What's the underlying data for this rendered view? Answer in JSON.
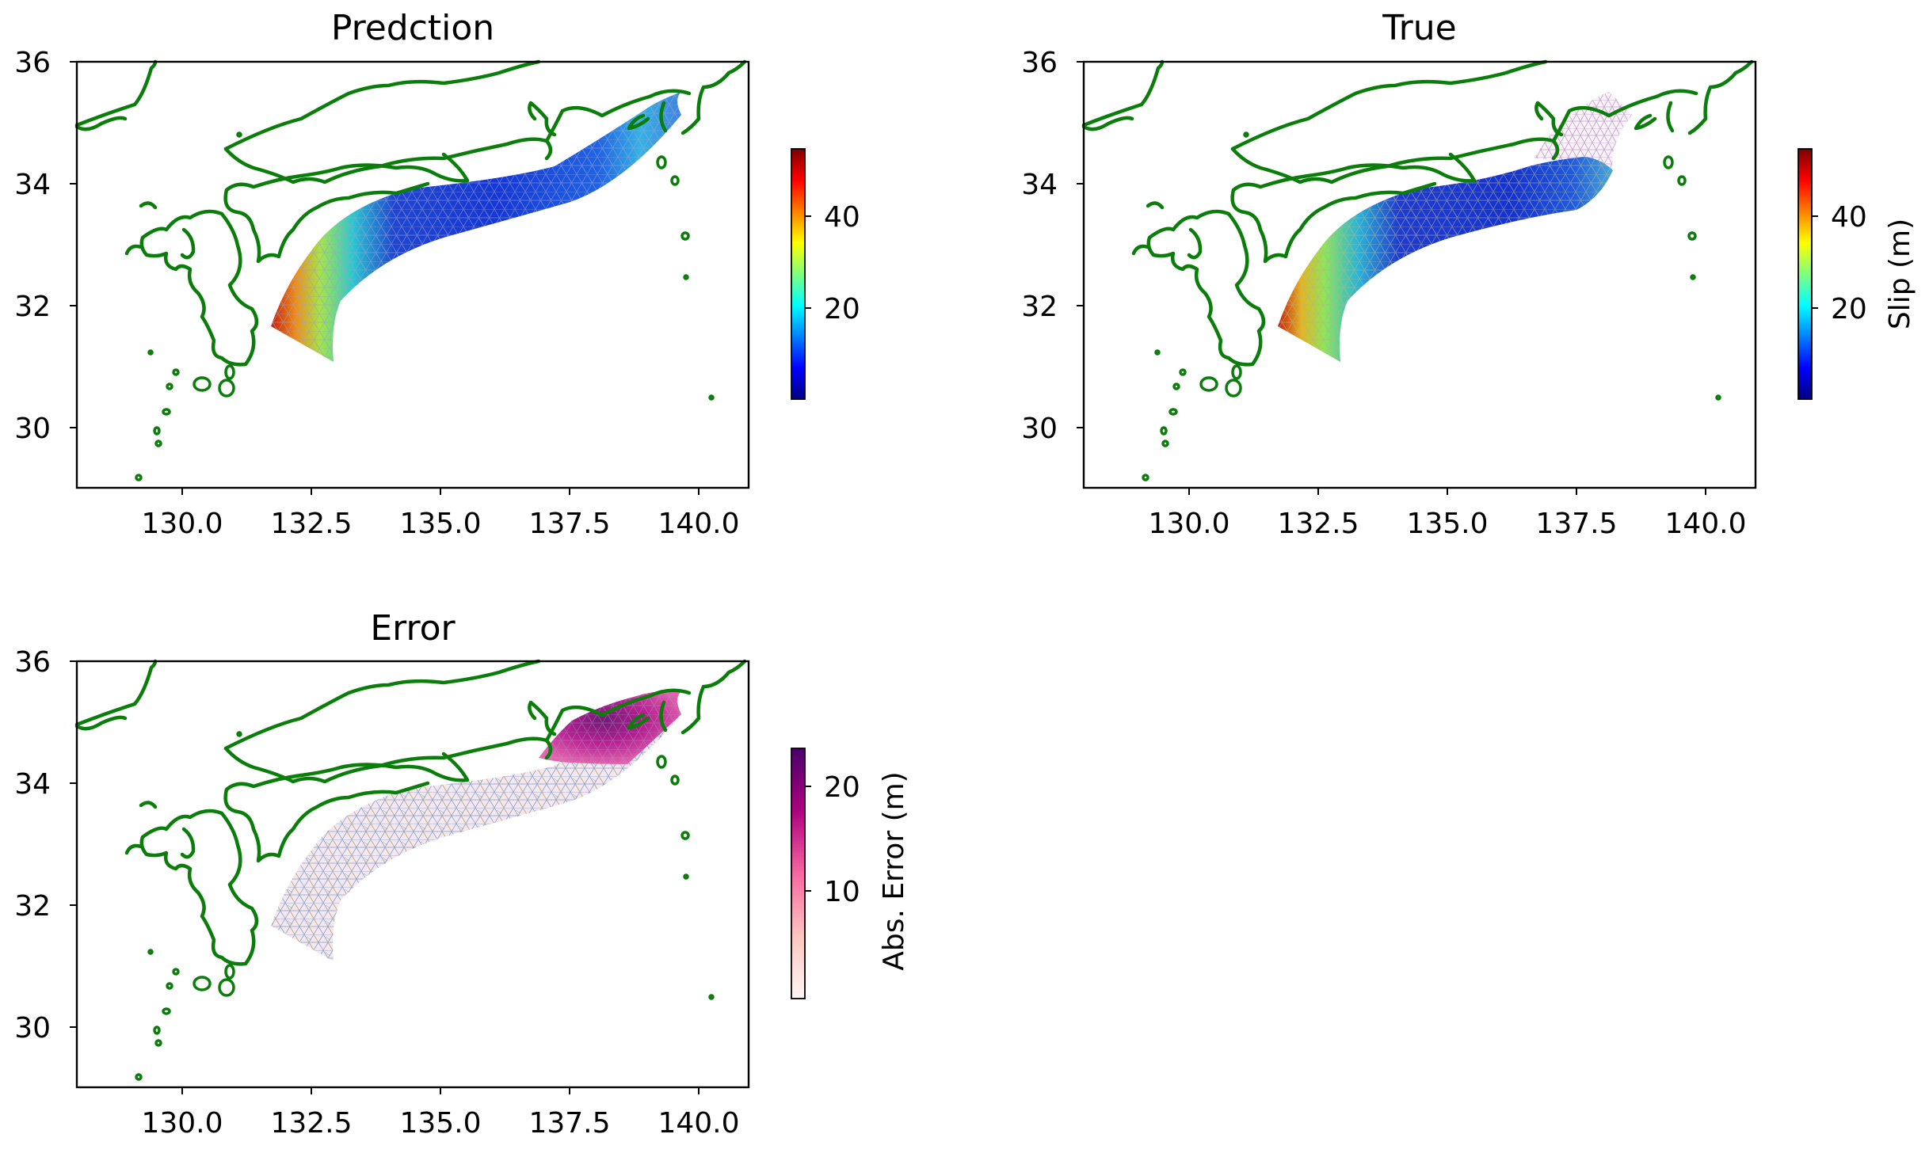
{
  "chart_data": [
    {
      "type": "heatmap",
      "title": "Predction",
      "x_ticks": [
        "130.0",
        "132.5",
        "135.0",
        "137.5",
        "140.0"
      ],
      "y_ticks": [
        "30",
        "32",
        "34",
        "36"
      ],
      "xlim": [
        128.0,
        141.0
      ],
      "ylim": [
        29.0,
        36.0
      ],
      "colormap": "jet",
      "colorbar": {
        "label": "",
        "ticks": [
          "20",
          "40"
        ],
        "range": [
          0,
          55
        ]
      },
      "slip_trend_along_strike": {
        "lon": [
          132.0,
          133.0,
          134.0,
          135.0,
          136.0,
          137.0,
          137.6,
          138.3
        ],
        "value_m": [
          50,
          22,
          8,
          6,
          8,
          14,
          20,
          12
        ]
      }
    },
    {
      "type": "heatmap",
      "title": "True",
      "x_ticks": [
        "130.0",
        "132.5",
        "135.0",
        "137.5",
        "140.0"
      ],
      "y_ticks": [
        "30",
        "32",
        "34",
        "36"
      ],
      "xlim": [
        128.0,
        141.0
      ],
      "ylim": [
        29.0,
        36.0
      ],
      "colormap": "jet",
      "colorbar": {
        "label": "Slip (m)",
        "ticks": [
          "20",
          "40"
        ],
        "range": [
          0,
          55
        ]
      },
      "slip_trend_along_strike": {
        "lon": [
          132.0,
          133.0,
          134.0,
          135.0,
          136.0,
          137.0,
          137.5
        ],
        "value_m": [
          52,
          22,
          6,
          5,
          6,
          10,
          14
        ]
      }
    },
    {
      "type": "heatmap",
      "title": "Error",
      "x_ticks": [
        "130.0",
        "132.5",
        "135.0",
        "137.5",
        "140.0"
      ],
      "y_ticks": [
        "30",
        "32",
        "34",
        "36"
      ],
      "xlim": [
        128.0,
        141.0
      ],
      "ylim": [
        29.0,
        36.0
      ],
      "colormap": "RdPu",
      "colorbar": {
        "label": "Abs. Error (m)",
        "ticks": [
          "10",
          "20"
        ],
        "range": [
          0,
          22
        ]
      },
      "error_trend_along_strike": {
        "lon": [
          132.0,
          134.0,
          136.0,
          137.2,
          137.8,
          138.3
        ],
        "value_m": [
          2,
          1,
          2,
          6,
          20,
          14
        ]
      }
    }
  ]
}
